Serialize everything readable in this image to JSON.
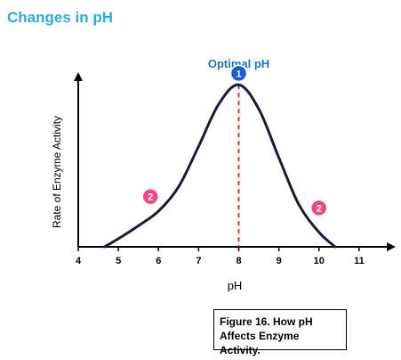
{
  "header": {
    "title": "Changes in pH"
  },
  "caption": {
    "line1": "Figure 16. How pH",
    "line2": "Affects Enzyme Activity."
  },
  "colors": {
    "title": "#29abe2",
    "optimal_label": "#1f75b9",
    "marker_optimal": "#1a5cd7",
    "marker_side": "#f0468a",
    "curve": "#1b1b3a",
    "dashed_line": "#c62828"
  },
  "chart_data": {
    "type": "line",
    "title": "",
    "xlabel": "pH",
    "ylabel": "Rate of Enzyme Activity",
    "xlim": [
      4,
      11.8
    ],
    "ylim": [
      0,
      1.05
    ],
    "xticks": [
      "4",
      "5",
      "6",
      "7",
      "8",
      "9",
      "10",
      "11"
    ],
    "grid": false,
    "series": [
      {
        "x": [
          4.65,
          5.0,
          5.5,
          6.0,
          6.5,
          7.0,
          7.5,
          8.0,
          8.5,
          9.0,
          9.5,
          10.0,
          10.4
        ],
        "y": [
          0.0,
          0.05,
          0.13,
          0.22,
          0.37,
          0.62,
          0.88,
          1.0,
          0.85,
          0.55,
          0.26,
          0.09,
          0.0
        ]
      }
    ],
    "annotations": [
      {
        "text": "Optimal pH",
        "x": 8.0,
        "y": 1.0
      },
      {
        "marker": "1",
        "x": 8.0,
        "y": 1.07
      },
      {
        "marker": "2",
        "x": 5.8,
        "y": 0.31
      },
      {
        "marker": "2",
        "x": 10.0,
        "y": 0.24
      }
    ],
    "optimal_x": 8.0
  }
}
